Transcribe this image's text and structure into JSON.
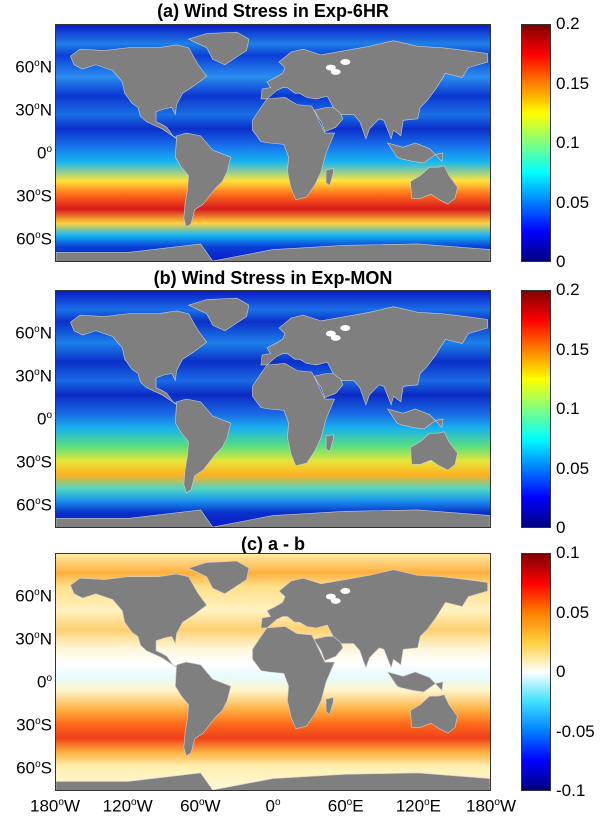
{
  "panels": [
    {
      "id": "a",
      "title": "(a) Wind Stress in Exp-6HR",
      "colormap": "jet",
      "colorbar_ticks": [
        "0.2",
        "0.15",
        "0.1",
        "0.05",
        "0"
      ],
      "colorbar_range": [
        0,
        0.2
      ]
    },
    {
      "id": "b",
      "title": "(b) Wind Stress in Exp-MON",
      "colormap": "jet",
      "colorbar_ticks": [
        "0.2",
        "0.15",
        "0.1",
        "0.05",
        "0"
      ],
      "colorbar_range": [
        0,
        0.2
      ]
    },
    {
      "id": "c",
      "title": "(c) a - b",
      "colormap": "diverging",
      "colorbar_ticks": [
        "0.1",
        "0.05",
        "0",
        "-0.05",
        "-0.1"
      ],
      "colorbar_range": [
        -0.1,
        0.1
      ]
    }
  ],
  "lat_labels": [
    {
      "deg": "60",
      "hemi": "N"
    },
    {
      "deg": "30",
      "hemi": "N"
    },
    {
      "deg": "0",
      "hemi": ""
    },
    {
      "deg": "30",
      "hemi": "S"
    },
    {
      "deg": "60",
      "hemi": "S"
    }
  ],
  "lon_labels": [
    {
      "deg": "180",
      "hemi": "W"
    },
    {
      "deg": "120",
      "hemi": "W"
    },
    {
      "deg": "60",
      "hemi": "W"
    },
    {
      "deg": "0",
      "hemi": ""
    },
    {
      "deg": "60",
      "hemi": "E"
    },
    {
      "deg": "120",
      "hemi": "E"
    },
    {
      "deg": "180",
      "hemi": "W"
    }
  ],
  "colors": {
    "land": "#7f7f7f",
    "ice": "#ffffff"
  }
}
